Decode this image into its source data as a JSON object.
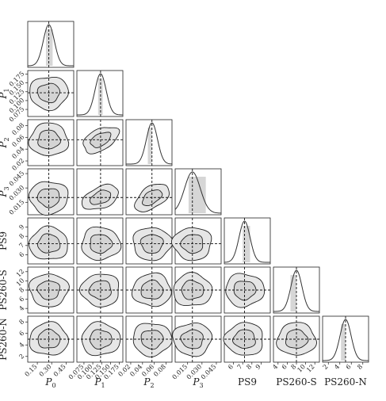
{
  "chart_data": {
    "type": "corner",
    "parameters": [
      {
        "key": "P0",
        "label_main": "P",
        "label_sub": "0",
        "range": [
          0.05,
          0.53
        ],
        "ticks": [
          0.15,
          0.3,
          0.45
        ],
        "tick_labels": [
          "0.15",
          "0.30",
          "0.45"
        ],
        "y_tick_labels": [],
        "truth": 0.27,
        "band": [
          0.24,
          0.31
        ]
      },
      {
        "key": "P1",
        "label_main": "P",
        "label_sub": "1",
        "range": [
          0.055,
          0.185
        ],
        "ticks": [
          0.075,
          0.1,
          0.125,
          0.15,
          0.175
        ],
        "tick_labels": [
          "0.075",
          "0.100",
          "0.125",
          "0.150",
          "0.175"
        ],
        "y_tick_labels": [
          "0.075",
          "0.100",
          "0.125",
          "0.150",
          "0.175"
        ],
        "truth": 0.122,
        "band": [
          0.115,
          0.128
        ]
      },
      {
        "key": "P2",
        "label_main": "P",
        "label_sub": "2",
        "range": [
          0.012,
          0.09
        ],
        "ticks": [
          0.02,
          0.04,
          0.06,
          0.08
        ],
        "tick_labels": [
          "0.02",
          "0.04",
          "0.06",
          "0.08"
        ],
        "y_tick_labels": [
          "0.02",
          "0.04",
          "0.06",
          "0.08"
        ],
        "truth": 0.056,
        "band": [
          0.049,
          0.056
        ]
      },
      {
        "key": "P3",
        "label_main": "P",
        "label_sub": "3",
        "range": [
          0.002,
          0.05
        ],
        "ticks": [
          0.015,
          0.03,
          0.045
        ],
        "tick_labels": [
          "0.015",
          "0.030",
          "0.045"
        ],
        "y_tick_labels": [
          "0.015",
          "0.030",
          "0.045"
        ],
        "truth": 0.02,
        "band": [
          0.016,
          0.034
        ]
      },
      {
        "key": "PS9",
        "label_main": "PS9",
        "label_sub": "",
        "range": [
          5,
          10
        ],
        "ticks": [
          6,
          7,
          8,
          9
        ],
        "tick_labels": [
          "6",
          "7",
          "8",
          "9"
        ],
        "y_tick_labels": [
          "6",
          "7",
          "8",
          "9"
        ],
        "truth": 7.2,
        "band": [
          7.0,
          7.8
        ]
      },
      {
        "key": "PS260-S",
        "label_main": "PS260-S",
        "label_sub": "",
        "range": [
          3,
          13
        ],
        "ticks": [
          4,
          6,
          8,
          10,
          12
        ],
        "tick_labels": [
          "4",
          "6",
          "8",
          "10",
          "12"
        ],
        "y_tick_labels": [
          "4",
          "6",
          "8",
          "10",
          "12"
        ],
        "truth": 8,
        "band": [
          6.7,
          8.0
        ]
      },
      {
        "key": "PS260-N",
        "label_main": "PS260-N",
        "label_sub": "",
        "range": [
          1,
          9
        ],
        "ticks": [
          2,
          4,
          6,
          8
        ],
        "tick_labels": [
          "2",
          "4",
          "6",
          "8"
        ],
        "y_tick_labels": [
          "2",
          "4",
          "6",
          "8"
        ],
        "truth": 5,
        "band": [
          4.2,
          5.0
        ]
      }
    ],
    "panel_layout": "lower-triangle",
    "diagonal": "1D marginal density with shaded interval and dashed truth line",
    "off_diagonal": "2D density contours (two levels) with dashed truth crosshair",
    "grid": false
  }
}
